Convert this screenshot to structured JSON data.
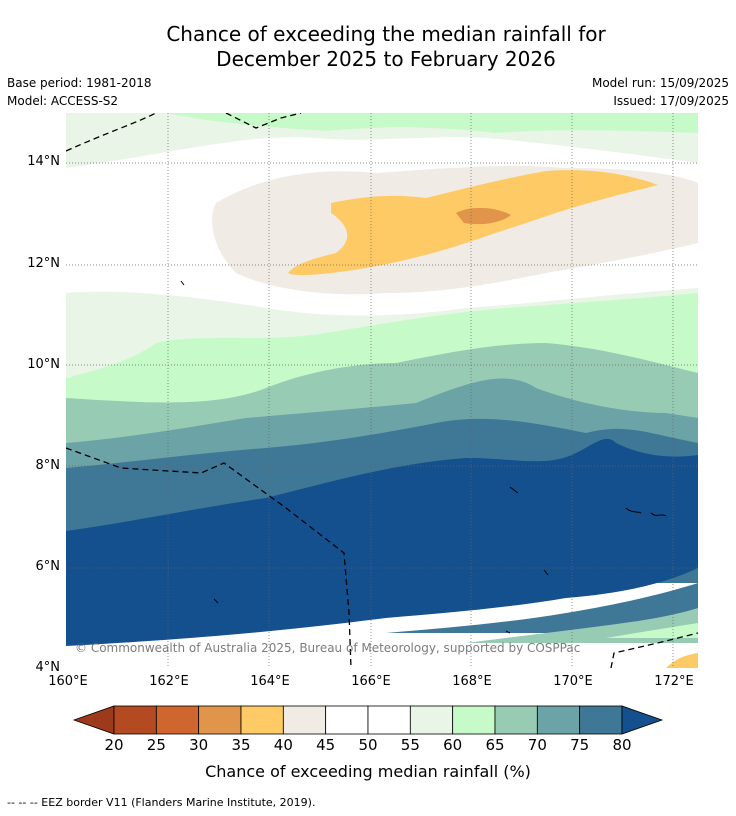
{
  "title_line1": "Chance of exceeding the median rainfall for",
  "title_line2": "December 2025 to February 2026",
  "base_period": "Base period: 1981-2018",
  "model": "Model: ACCESS-S2",
  "model_run": "Model run: 15/09/2025",
  "issued": "Issued: 17/09/2025",
  "lat_labels": [
    "14°N",
    "12°N",
    "10°N",
    "8°N",
    "6°N",
    "4°N"
  ],
  "lon_labels": [
    "160°E",
    "162°E",
    "164°E",
    "166°E",
    "168°E",
    "170°E",
    "172°E"
  ],
  "copyright": "© Commonwealth of Australia 2025, Bureau of Meteorology, supported by COSPPac",
  "colorbar": {
    "title": "Chance of exceeding median rainfall (%)",
    "ticks": [
      "20",
      "25",
      "30",
      "35",
      "40",
      "45",
      "50",
      "55",
      "60",
      "65",
      "70",
      "75",
      "80"
    ],
    "colors": [
      "#9e3a1c",
      "#b44a22",
      "#cf6630",
      "#e0954a",
      "#fdca66",
      "#f0ebe4",
      "#ffffff",
      "#ffffff",
      "#e9f5e7",
      "#c7fac9",
      "#98cbb4",
      "#6ba3a6",
      "#3f7797",
      "#14508d"
    ]
  },
  "footer": "--  --  -- EEZ border V11 (Flanders Marine Institute, 2019)."
}
